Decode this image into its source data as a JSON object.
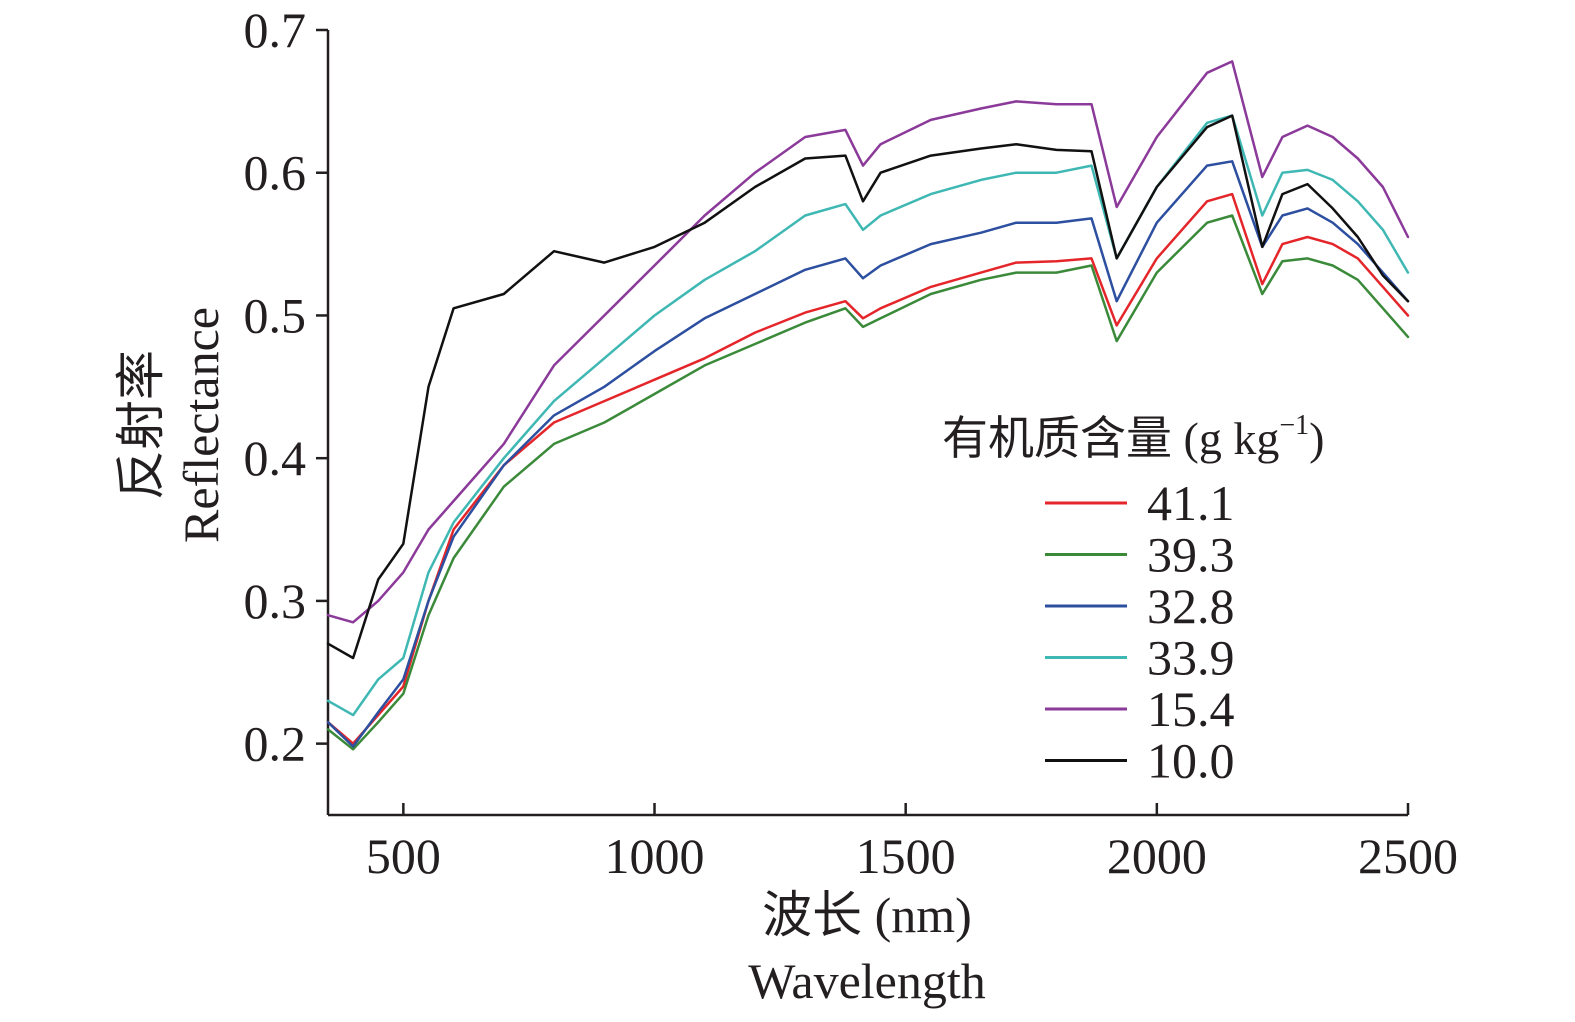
{
  "chart_data": {
    "type": "line",
    "xlabel": "波长 (nm)",
    "xlabel_en": "Wavelength",
    "ylabel": "反射率",
    "ylabel_en": "Reflectance",
    "xlim": [
      350,
      2500
    ],
    "ylim": [
      0.15,
      0.7
    ],
    "x_ticks": [
      500,
      1000,
      1500,
      2000,
      2500
    ],
    "x_tick_labels": [
      "500",
      "1000",
      "1500",
      "2000",
      "2500"
    ],
    "y_ticks": [
      0.2,
      0.3,
      0.4,
      0.5,
      0.6,
      0.7
    ],
    "y_tick_labels": [
      "0.2",
      "0.3",
      "0.4",
      "0.5",
      "0.6",
      "0.7"
    ],
    "grid": false,
    "legend": {
      "placement": "right",
      "title_prefix": "有机质含量 (g kg",
      "title_sup": "−1",
      "title_suffix": ")"
    },
    "x": [
      350,
      400,
      450,
      500,
      550,
      600,
      700,
      800,
      900,
      1000,
      1100,
      1200,
      1300,
      1380,
      1415,
      1450,
      1550,
      1650,
      1720,
      1800,
      1870,
      1920,
      2000,
      2100,
      2150,
      2210,
      2250,
      2300,
      2350,
      2400,
      2450,
      2500
    ],
    "series": [
      {
        "name": "41.1",
        "color": "#e4262b",
        "values": [
          0.215,
          0.2,
          0.22,
          0.24,
          0.3,
          0.35,
          0.395,
          0.425,
          0.44,
          0.455,
          0.47,
          0.488,
          0.502,
          0.51,
          0.498,
          0.505,
          0.52,
          0.53,
          0.537,
          0.538,
          0.54,
          0.493,
          0.54,
          0.58,
          0.585,
          0.522,
          0.55,
          0.555,
          0.55,
          0.54,
          0.52,
          0.5
        ]
      },
      {
        "name": "39.3",
        "color": "#3a8a3a",
        "values": [
          0.21,
          0.196,
          0.215,
          0.235,
          0.29,
          0.33,
          0.38,
          0.41,
          0.425,
          0.445,
          0.465,
          0.48,
          0.495,
          0.505,
          0.492,
          0.498,
          0.515,
          0.525,
          0.53,
          0.53,
          0.535,
          0.482,
          0.53,
          0.565,
          0.57,
          0.515,
          0.538,
          0.54,
          0.535,
          0.525,
          0.505,
          0.485
        ]
      },
      {
        "name": "32.8",
        "color": "#2d4fa0",
        "values": [
          0.215,
          0.198,
          0.222,
          0.245,
          0.3,
          0.345,
          0.395,
          0.43,
          0.45,
          0.475,
          0.498,
          0.515,
          0.532,
          0.54,
          0.526,
          0.535,
          0.55,
          0.558,
          0.565,
          0.565,
          0.568,
          0.51,
          0.565,
          0.605,
          0.608,
          0.548,
          0.57,
          0.575,
          0.565,
          0.55,
          0.53,
          0.51
        ]
      },
      {
        "name": "33.9",
        "color": "#3fb8b4",
        "values": [
          0.23,
          0.22,
          0.245,
          0.26,
          0.32,
          0.355,
          0.4,
          0.44,
          0.47,
          0.5,
          0.525,
          0.545,
          0.57,
          0.578,
          0.56,
          0.57,
          0.585,
          0.595,
          0.6,
          0.6,
          0.605,
          0.54,
          0.59,
          0.635,
          0.64,
          0.57,
          0.6,
          0.602,
          0.595,
          0.58,
          0.56,
          0.53
        ]
      },
      {
        "name": "15.4",
        "color": "#8b3a9a",
        "values": [
          0.29,
          0.285,
          0.3,
          0.32,
          0.35,
          0.37,
          0.41,
          0.465,
          0.5,
          0.535,
          0.57,
          0.6,
          0.625,
          0.63,
          0.605,
          0.62,
          0.637,
          0.645,
          0.65,
          0.648,
          0.648,
          0.576,
          0.625,
          0.67,
          0.678,
          0.597,
          0.625,
          0.633,
          0.625,
          0.61,
          0.59,
          0.555
        ]
      },
      {
        "name": "10.0",
        "color": "#111111",
        "values": [
          0.27,
          0.26,
          0.315,
          0.34,
          0.45,
          0.505,
          0.515,
          0.545,
          0.537,
          0.548,
          0.565,
          0.59,
          0.61,
          0.612,
          0.58,
          0.6,
          0.612,
          0.617,
          0.62,
          0.616,
          0.615,
          0.54,
          0.59,
          0.632,
          0.64,
          0.548,
          0.585,
          0.592,
          0.575,
          0.555,
          0.528,
          0.51
        ]
      }
    ]
  }
}
